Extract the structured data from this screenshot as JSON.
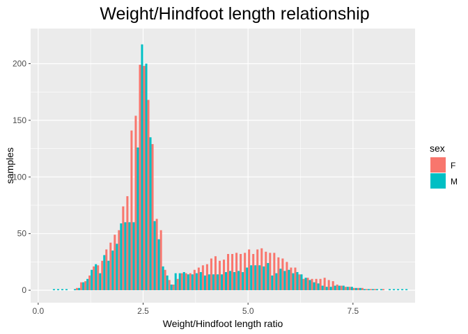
{
  "chart_data": {
    "type": "bar",
    "title": "Weight/Hindfoot length relationship",
    "xlabel": "Weight/Hindfoot length ratio",
    "ylabel": "samples",
    "xlim": [
      -0.18,
      8.98
    ],
    "ylim": [
      -11,
      231
    ],
    "xticks": [
      0.0,
      2.5,
      5.0,
      7.5
    ],
    "xtick_labels": [
      "0.0",
      "2.5",
      "5.0",
      "7.5"
    ],
    "yticks": [
      0,
      50,
      100,
      150,
      200
    ],
    "ytick_labels": [
      "0",
      "50",
      "100",
      "150",
      "200"
    ],
    "bin_width": 0.1,
    "grid": true,
    "legend": {
      "title": "sex",
      "position": "right"
    },
    "series": [
      {
        "name": "F",
        "color": "#F8766D",
        "x": [
          0.95,
          1.05,
          1.15,
          1.25,
          1.35,
          1.45,
          1.55,
          1.65,
          1.75,
          1.85,
          1.95,
          2.05,
          2.15,
          2.25,
          2.35,
          2.45,
          2.55,
          2.65,
          2.75,
          2.85,
          2.95,
          3.05,
          3.15,
          3.25,
          3.35,
          3.45,
          3.55,
          3.65,
          3.75,
          3.85,
          3.95,
          4.05,
          4.15,
          4.25,
          4.35,
          4.45,
          4.55,
          4.65,
          4.75,
          4.85,
          4.95,
          5.05,
          5.15,
          5.25,
          5.35,
          5.45,
          5.55,
          5.65,
          5.75,
          5.85,
          5.95,
          6.05,
          6.15,
          6.25,
          6.35,
          6.45,
          6.55,
          6.65,
          6.75,
          6.85,
          6.95,
          7.05,
          7.15,
          7.25,
          7.35,
          7.45,
          7.55,
          7.65,
          7.75,
          7.85,
          7.95,
          8.05,
          8.25
        ],
        "values": [
          2,
          7,
          8,
          13,
          21,
          22,
          26,
          36,
          42,
          49,
          53,
          74,
          83,
          141,
          154,
          199,
          198,
          168,
          129,
          63,
          53,
          18,
          9,
          5,
          10,
          15,
          15,
          15,
          18,
          20,
          22,
          23,
          28,
          30,
          26,
          27,
          32,
          32,
          33,
          32,
          33,
          36,
          32,
          36,
          37,
          34,
          33,
          33,
          29,
          28,
          25,
          20,
          20,
          14,
          10,
          11,
          10,
          10,
          10,
          11,
          9,
          8,
          5,
          4,
          3,
          3,
          2,
          2,
          2,
          1,
          1,
          1,
          1
        ]
      },
      {
        "name": "M",
        "color": "#00BFC4",
        "x": [
          0.35,
          0.45,
          0.55,
          0.65,
          0.85,
          0.95,
          1.05,
          1.15,
          1.25,
          1.35,
          1.45,
          1.55,
          1.65,
          1.75,
          1.85,
          1.95,
          2.05,
          2.15,
          2.25,
          2.35,
          2.45,
          2.55,
          2.65,
          2.75,
          2.85,
          2.95,
          3.05,
          3.15,
          3.25,
          3.35,
          3.45,
          3.55,
          3.65,
          3.75,
          3.85,
          3.95,
          4.05,
          4.15,
          4.25,
          4.35,
          4.45,
          4.55,
          4.65,
          4.75,
          4.85,
          4.95,
          5.05,
          5.15,
          5.25,
          5.35,
          5.45,
          5.55,
          5.65,
          5.75,
          5.85,
          5.95,
          6.05,
          6.15,
          6.25,
          6.35,
          6.45,
          6.55,
          6.65,
          6.75,
          6.85,
          6.95,
          7.05,
          7.15,
          7.25,
          7.35,
          7.45,
          7.55,
          7.65,
          7.75,
          7.85,
          7.95,
          8.05,
          8.15,
          8.35,
          8.45,
          8.55,
          8.65,
          8.75
        ],
        "values": [
          1,
          1,
          1,
          1,
          1,
          2,
          7,
          10,
          18,
          23,
          15,
          31,
          26,
          35,
          41,
          59,
          60,
          60,
          60,
          126,
          217,
          200,
          135,
          61,
          45,
          21,
          13,
          5,
          15,
          15,
          16,
          14,
          14,
          15,
          16,
          13,
          14,
          14,
          14,
          14,
          16,
          17,
          16,
          17,
          16,
          20,
          22,
          22,
          22,
          21,
          24,
          13,
          15,
          19,
          17,
          18,
          15,
          16,
          14,
          11,
          9,
          7,
          6,
          4,
          3,
          3,
          4,
          4,
          4,
          3,
          3,
          2,
          2,
          1,
          1,
          1,
          1,
          1,
          1,
          1,
          1,
          1,
          1
        ]
      }
    ]
  }
}
